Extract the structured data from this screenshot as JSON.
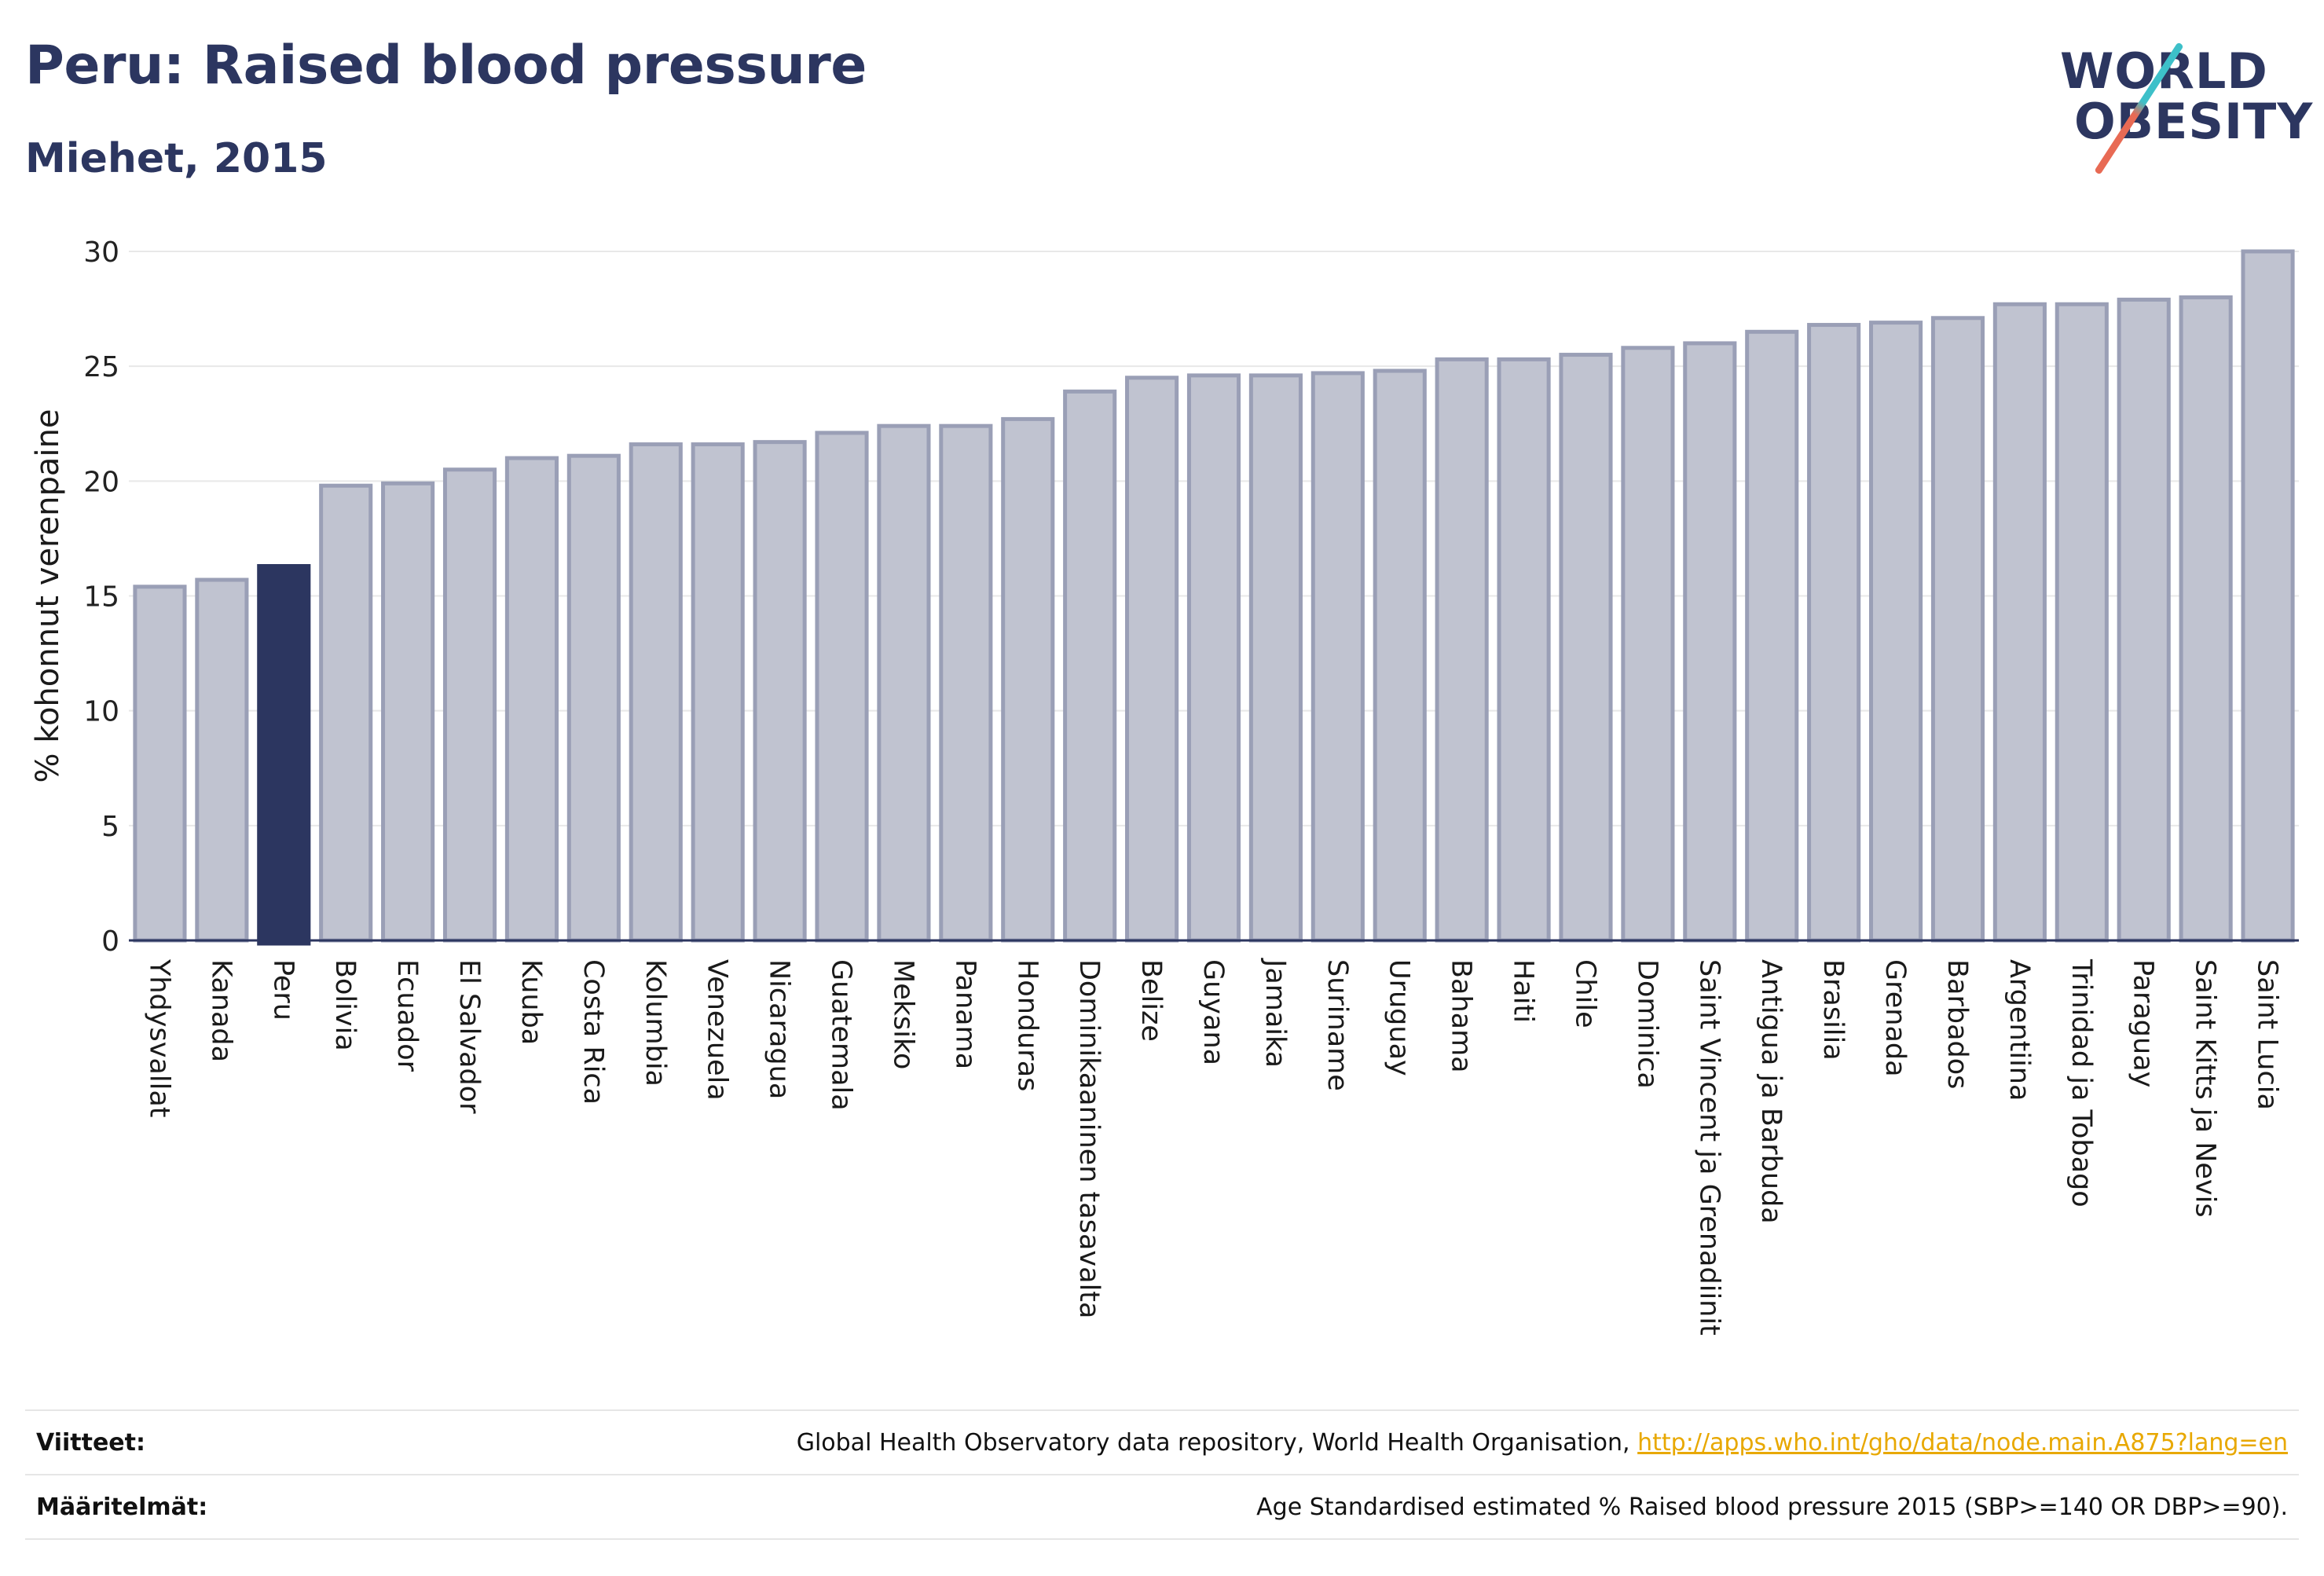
{
  "header": {
    "title": "Peru: Raised blood pressure",
    "subtitle": "Miehet, 2015"
  },
  "logo": {
    "line1": "WORLD",
    "line2": "OBESITY"
  },
  "colors": {
    "highlight": "#2c3660",
    "bar_fill": "#c0c3d0",
    "bar_stroke": "#9a9fb6",
    "grid": "#e8e8e8"
  },
  "chart_data": {
    "type": "bar",
    "ylabel": "% kohonnut verenpaine",
    "ylim": [
      0,
      30
    ],
    "yticks": [
      0,
      5,
      10,
      15,
      20,
      25,
      30
    ],
    "highlight": "Peru",
    "categories": [
      "Yhdysvallat",
      "Kanada",
      "Peru",
      "Bolivia",
      "Ecuador",
      "El Salvador",
      "Kuuba",
      "Costa Rica",
      "Kolumbia",
      "Venezuela",
      "Nicaragua",
      "Guatemala",
      "Meksiko",
      "Panama",
      "Honduras",
      "Dominikaaninen tasavalta",
      "Belize",
      "Guyana",
      "Jamaika",
      "Suriname",
      "Uruguay",
      "Bahama",
      "Haiti",
      "Chile",
      "Dominica",
      "Saint Vincent ja Grenadiinit",
      "Antigua ja Barbuda",
      "Brasilia",
      "Grenada",
      "Barbados",
      "Argentiina",
      "Trinidad ja Tobago",
      "Paraguay",
      "Saint Kitts ja Nevis",
      "Saint Lucia"
    ],
    "values": [
      15.4,
      15.7,
      16.3,
      19.8,
      19.9,
      20.5,
      21.0,
      21.1,
      21.6,
      21.6,
      21.7,
      22.1,
      22.4,
      22.4,
      22.7,
      23.9,
      24.5,
      24.6,
      24.6,
      24.7,
      24.8,
      25.3,
      25.3,
      25.5,
      25.8,
      26.0,
      26.5,
      26.8,
      26.9,
      27.1,
      27.7,
      27.7,
      27.9,
      28.0,
      30.0
    ]
  },
  "footer": {
    "sources_label": "Viitteet:",
    "sources_text": "Global Health Observatory data repository, World Health Organisation,",
    "sources_link": "http://apps.who.int/gho/data/node.main.A875?lang=en",
    "definitions_label": "Määritelmät:",
    "definitions_text": "Age Standardised estimated % Raised blood pressure 2015 (SBP>=140 OR DBP>=90)."
  }
}
